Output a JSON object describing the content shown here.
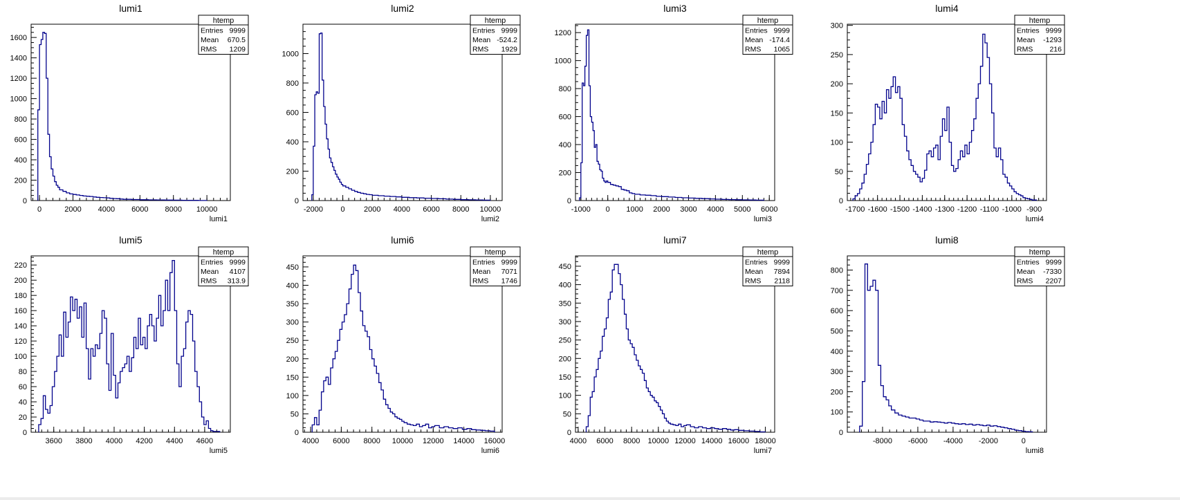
{
  "colors": {
    "line": "#00008b",
    "axis": "#000000",
    "stats_bg": "#ffffff"
  },
  "stats_labels": {
    "entries": "Entries",
    "mean": "Mean",
    "rms": "RMS"
  },
  "chart_data": [
    {
      "type": "histogram",
      "title": "lumi1",
      "xlabel": "lumi1",
      "stats": {
        "name": "htemp",
        "entries": "9999",
        "mean": "670.5",
        "rms": "1209"
      },
      "xlim": [
        -500,
        11400
      ],
      "ylim": [
        0,
        1730
      ],
      "xticks": [
        0,
        2000,
        4000,
        6000,
        8000,
        10000
      ],
      "yticks": [
        0,
        200,
        400,
        600,
        800,
        1000,
        1200,
        1400,
        1600
      ],
      "bin_edges": [
        -100,
        0,
        100,
        200,
        300,
        400,
        500,
        600,
        700,
        800,
        900,
        1000,
        1100,
        1200,
        1400,
        1600,
        1800,
        2000,
        2200,
        2400,
        2600,
        2800,
        3000,
        3200,
        3400,
        3600,
        3800,
        4000,
        4200,
        4400,
        4600,
        4800,
        5000,
        5500,
        6000,
        6500,
        7000,
        7500,
        8000,
        8500,
        9000,
        9500,
        10000
      ],
      "counts": [
        890,
        1530,
        1580,
        1650,
        1640,
        1200,
        650,
        430,
        310,
        240,
        185,
        150,
        130,
        105,
        90,
        75,
        65,
        60,
        55,
        50,
        45,
        42,
        40,
        35,
        32,
        30,
        28,
        26,
        22,
        20,
        18,
        15,
        12,
        10,
        8,
        7,
        6,
        5,
        4,
        3,
        2,
        1
      ]
    },
    {
      "type": "histogram",
      "title": "lumi2",
      "xlabel": "lumi2",
      "stats": {
        "name": "htemp",
        "entries": "9999",
        "mean": "-524.2",
        "rms": "1929"
      },
      "xlim": [
        -2700,
        10800
      ],
      "ylim": [
        0,
        1200
      ],
      "xticks": [
        -2000,
        0,
        2000,
        4000,
        6000,
        8000,
        10000
      ],
      "yticks": [
        0,
        200,
        400,
        600,
        800,
        1000
      ],
      "bin_edges": [
        -2100,
        -2000,
        -1900,
        -1800,
        -1700,
        -1600,
        -1500,
        -1400,
        -1300,
        -1200,
        -1100,
        -1000,
        -900,
        -800,
        -700,
        -600,
        -500,
        -400,
        -300,
        -200,
        -100,
        0,
        200,
        400,
        600,
        800,
        1000,
        1200,
        1400,
        1600,
        1800,
        2000,
        2400,
        2800,
        3200,
        3600,
        4000,
        4500,
        5000,
        5500,
        6000,
        6500,
        7000,
        7500,
        8000,
        8500,
        9000,
        9500,
        10000
      ],
      "counts": [
        40,
        370,
        720,
        740,
        730,
        1135,
        1140,
        820,
        640,
        520,
        420,
        350,
        290,
        260,
        230,
        205,
        180,
        160,
        145,
        125,
        110,
        100,
        90,
        80,
        70,
        62,
        55,
        50,
        46,
        42,
        40,
        36,
        33,
        30,
        28,
        25,
        22,
        20,
        18,
        16,
        14,
        12,
        10,
        8,
        6,
        5,
        4,
        3
      ]
    },
    {
      "type": "histogram",
      "title": "lumi3",
      "xlabel": "lumi3",
      "stats": {
        "name": "htemp",
        "entries": "9999",
        "mean": "-174.4",
        "rms": "1065"
      },
      "xlim": [
        -1200,
        6200
      ],
      "ylim": [
        0,
        1260
      ],
      "xticks": [
        -1000,
        0,
        1000,
        2000,
        3000,
        4000,
        5000,
        6000
      ],
      "yticks": [
        0,
        200,
        400,
        600,
        800,
        1000,
        1200
      ],
      "bin_edges": [
        -1050,
        -1000,
        -950,
        -900,
        -850,
        -800,
        -750,
        -700,
        -650,
        -600,
        -550,
        -500,
        -450,
        -400,
        -350,
        -300,
        -250,
        -200,
        -150,
        -100,
        -50,
        0,
        100,
        200,
        300,
        400,
        500,
        600,
        700,
        800,
        900,
        1000,
        1200,
        1400,
        1600,
        1800,
        2000,
        2250,
        2500,
        2750,
        3000,
        3250,
        3500,
        3750,
        4000,
        4250,
        4500,
        4750,
        5000,
        5250,
        5500,
        5800
      ],
      "counts": [
        20,
        270,
        840,
        820,
        960,
        1180,
        1220,
        820,
        600,
        560,
        500,
        380,
        400,
        280,
        260,
        220,
        210,
        160,
        140,
        130,
        140,
        130,
        115,
        110,
        105,
        100,
        80,
        75,
        70,
        55,
        50,
        45,
        40,
        38,
        35,
        30,
        28,
        25,
        22,
        20,
        18,
        16,
        14,
        12,
        10,
        8,
        7,
        6,
        5,
        4,
        3
      ]
    },
    {
      "type": "histogram",
      "title": "lumi4",
      "xlabel": "lumi4",
      "stats": {
        "name": "htemp",
        "entries": "9999",
        "mean": "-1293",
        "rms": "216"
      },
      "xlim": [
        -1735,
        -845
      ],
      "ylim": [
        0,
        302
      ],
      "xticks": [
        -1700,
        -1600,
        -1500,
        -1400,
        -1300,
        -1200,
        -1100,
        -1000,
        -900
      ],
      "yticks": [
        0,
        50,
        100,
        150,
        200,
        250,
        300
      ],
      "bin_edges": [
        -1710,
        -1700,
        -1690,
        -1680,
        -1670,
        -1660,
        -1650,
        -1640,
        -1630,
        -1620,
        -1610,
        -1600,
        -1590,
        -1580,
        -1570,
        -1560,
        -1550,
        -1540,
        -1530,
        -1520,
        -1510,
        -1500,
        -1490,
        -1480,
        -1470,
        -1460,
        -1450,
        -1440,
        -1430,
        -1420,
        -1410,
        -1400,
        -1390,
        -1380,
        -1370,
        -1360,
        -1350,
        -1340,
        -1330,
        -1320,
        -1310,
        -1300,
        -1290,
        -1280,
        -1270,
        -1260,
        -1250,
        -1240,
        -1230,
        -1220,
        -1210,
        -1200,
        -1190,
        -1180,
        -1170,
        -1160,
        -1150,
        -1140,
        -1130,
        -1120,
        -1110,
        -1100,
        -1090,
        -1080,
        -1070,
        -1060,
        -1050,
        -1040,
        -1030,
        -1020,
        -1010,
        -1000,
        -990,
        -980,
        -970,
        -960,
        -950,
        -940,
        -930,
        -920,
        -910,
        -900,
        -890
      ],
      "counts": [
        3,
        8,
        12,
        20,
        30,
        45,
        62,
        80,
        100,
        130,
        165,
        160,
        140,
        170,
        150,
        190,
        175,
        195,
        212,
        185,
        195,
        175,
        130,
        110,
        85,
        70,
        60,
        50,
        45,
        40,
        32,
        38,
        52,
        80,
        85,
        75,
        90,
        95,
        70,
        110,
        140,
        120,
        160,
        100,
        60,
        50,
        55,
        70,
        85,
        75,
        95,
        80,
        100,
        120,
        140,
        175,
        200,
        230,
        285,
        270,
        245,
        200,
        150,
        90,
        75,
        90,
        70,
        45,
        40,
        30,
        25,
        20,
        15,
        12,
        10,
        8,
        5,
        4,
        3,
        2,
        1,
        1
      ]
    },
    {
      "type": "histogram",
      "title": "lumi5",
      "xlabel": "lumi5",
      "stats": {
        "name": "htemp",
        "entries": "9999",
        "mean": "4107",
        "rms": "313.9"
      },
      "xlim": [
        3450,
        4770
      ],
      "ylim": [
        0,
        232
      ],
      "xticks": [
        3600,
        3800,
        4000,
        4200,
        4400,
        4600
      ],
      "yticks": [
        0,
        20,
        40,
        60,
        80,
        100,
        120,
        140,
        160,
        180,
        200,
        220
      ],
      "bin_edges": [
        3500,
        3515,
        3530,
        3545,
        3560,
        3575,
        3590,
        3605,
        3620,
        3635,
        3650,
        3665,
        3680,
        3695,
        3710,
        3725,
        3740,
        3755,
        3770,
        3785,
        3800,
        3815,
        3830,
        3845,
        3860,
        3875,
        3890,
        3905,
        3920,
        3935,
        3950,
        3965,
        3980,
        3995,
        4010,
        4025,
        4040,
        4055,
        4070,
        4085,
        4100,
        4115,
        4130,
        4145,
        4160,
        4175,
        4190,
        4205,
        4220,
        4235,
        4250,
        4265,
        4280,
        4295,
        4310,
        4325,
        4340,
        4355,
        4370,
        4385,
        4400,
        4415,
        4430,
        4445,
        4460,
        4475,
        4490,
        4505,
        4520,
        4535,
        4550,
        4565,
        4580,
        4595,
        4610,
        4625,
        4640,
        4655,
        4670,
        4685,
        4700
      ],
      "counts": [
        10,
        18,
        48,
        30,
        25,
        35,
        60,
        80,
        100,
        128,
        100,
        158,
        125,
        145,
        178,
        160,
        175,
        150,
        165,
        125,
        170,
        110,
        70,
        110,
        100,
        115,
        110,
        130,
        160,
        150,
        90,
        55,
        130,
        75,
        45,
        65,
        80,
        85,
        90,
        100,
        80,
        98,
        125,
        110,
        150,
        115,
        125,
        110,
        140,
        155,
        140,
        120,
        150,
        180,
        140,
        160,
        200,
        160,
        210,
        226,
        160,
        90,
        60,
        100,
        110,
        145,
        160,
        155,
        120,
        80,
        60,
        40,
        20,
        10,
        15,
        5,
        2,
        1,
        1,
        1
      ]
    },
    {
      "type": "histogram",
      "title": "lumi6",
      "xlabel": "lumi6",
      "stats": {
        "name": "htemp",
        "entries": "9999",
        "mean": "7071",
        "rms": "1746"
      },
      "xlim": [
        3500,
        16500
      ],
      "ylim": [
        0,
        480
      ],
      "xticks": [
        4000,
        6000,
        8000,
        10000,
        12000,
        14000,
        16000
      ],
      "yticks": [
        0,
        50,
        100,
        150,
        200,
        250,
        300,
        350,
        400,
        450
      ],
      "bin_edges": [
        4100,
        4250,
        4400,
        4550,
        4700,
        4850,
        5000,
        5150,
        5300,
        5450,
        5600,
        5750,
        5900,
        6050,
        6200,
        6350,
        6500,
        6650,
        6800,
        6950,
        7100,
        7250,
        7400,
        7550,
        7700,
        7850,
        8000,
        8150,
        8300,
        8450,
        8600,
        8750,
        8900,
        9050,
        9200,
        9350,
        9500,
        9650,
        9800,
        9950,
        10100,
        10300,
        10500,
        10700,
        10900,
        11100,
        11300,
        11500,
        11700,
        11900,
        12100,
        12400,
        12700,
        13000,
        13300,
        13600,
        13900,
        14200,
        14500,
        14800,
        15100,
        15400,
        15700,
        16000
      ],
      "counts": [
        20,
        40,
        20,
        60,
        110,
        140,
        150,
        130,
        175,
        200,
        220,
        250,
        280,
        300,
        320,
        350,
        390,
        430,
        455,
        440,
        380,
        330,
        290,
        275,
        260,
        225,
        200,
        180,
        160,
        135,
        115,
        90,
        75,
        65,
        55,
        50,
        42,
        38,
        35,
        30,
        26,
        22,
        20,
        18,
        22,
        15,
        18,
        22,
        12,
        15,
        18,
        12,
        15,
        12,
        10,
        12,
        8,
        10,
        7,
        6,
        5,
        4,
        3
      ]
    },
    {
      "type": "histogram",
      "title": "lumi7",
      "xlabel": "lumi7",
      "stats": {
        "name": "htemp",
        "entries": "9999",
        "mean": "7894",
        "rms": "2118"
      },
      "xlim": [
        3800,
        18700
      ],
      "ylim": [
        0,
        478
      ],
      "xticks": [
        4000,
        6000,
        8000,
        10000,
        12000,
        14000,
        16000,
        18000
      ],
      "yticks": [
        0,
        50,
        100,
        150,
        200,
        250,
        300,
        350,
        400,
        450
      ],
      "bin_edges": [
        4600,
        4750,
        4900,
        5050,
        5200,
        5350,
        5500,
        5650,
        5800,
        5950,
        6100,
        6250,
        6400,
        6550,
        6700,
        6850,
        7000,
        7150,
        7300,
        7450,
        7600,
        7750,
        7900,
        8050,
        8200,
        8350,
        8500,
        8650,
        8800,
        8950,
        9100,
        9250,
        9400,
        9550,
        9700,
        9850,
        10000,
        10150,
        10300,
        10450,
        10600,
        10750,
        10900,
        11100,
        11300,
        11500,
        11700,
        11900,
        12100,
        12400,
        12700,
        13000,
        13300,
        13600,
        13900,
        14200,
        14500,
        14800,
        15100,
        15400,
        15700,
        16000,
        16400,
        16800,
        17200,
        17600,
        18000
      ],
      "counts": [
        15,
        45,
        95,
        110,
        150,
        170,
        200,
        220,
        260,
        280,
        310,
        360,
        380,
        440,
        455,
        455,
        430,
        400,
        360,
        320,
        280,
        250,
        240,
        230,
        210,
        195,
        180,
        170,
        160,
        140,
        120,
        110,
        100,
        95,
        85,
        80,
        70,
        60,
        50,
        38,
        30,
        25,
        22,
        20,
        18,
        22,
        15,
        18,
        20,
        15,
        12,
        15,
        12,
        10,
        12,
        10,
        8,
        10,
        8,
        6,
        7,
        5,
        4,
        3,
        2,
        1
      ]
    },
    {
      "type": "histogram",
      "title": "lumi8",
      "xlabel": "lumi8",
      "stats": {
        "name": "htemp",
        "entries": "9999",
        "mean": "-7330",
        "rms": "2207"
      },
      "xlim": [
        -10000,
        1300
      ],
      "ylim": [
        0,
        870
      ],
      "xticks": [
        -8000,
        -6000,
        -4000,
        -2000,
        0
      ],
      "yticks": [
        0,
        100,
        200,
        300,
        400,
        500,
        600,
        700,
        800
      ],
      "bin_edges": [
        -9300,
        -9150,
        -9000,
        -8850,
        -8700,
        -8550,
        -8400,
        -8250,
        -8100,
        -7950,
        -7800,
        -7650,
        -7500,
        -7300,
        -7100,
        -6900,
        -6700,
        -6500,
        -6300,
        -6100,
        -5900,
        -5700,
        -5500,
        -5300,
        -5100,
        -4900,
        -4700,
        -4500,
        -4300,
        -4100,
        -3900,
        -3700,
        -3500,
        -3300,
        -3100,
        -2900,
        -2700,
        -2500,
        -2300,
        -2100,
        -1900,
        -1700,
        -1500,
        -1300,
        -1100,
        -900,
        -700,
        -500,
        -300,
        -100,
        100,
        300,
        500
      ],
      "counts": [
        30,
        250,
        830,
        700,
        720,
        750,
        700,
        330,
        230,
        175,
        160,
        130,
        110,
        95,
        85,
        80,
        75,
        70,
        70,
        65,
        60,
        55,
        55,
        50,
        52,
        50,
        48,
        45,
        48,
        45,
        42,
        40,
        42,
        38,
        40,
        35,
        38,
        35,
        32,
        35,
        30,
        32,
        28,
        25,
        22,
        18,
        15,
        10,
        8,
        5,
        3,
        2
      ]
    }
  ]
}
